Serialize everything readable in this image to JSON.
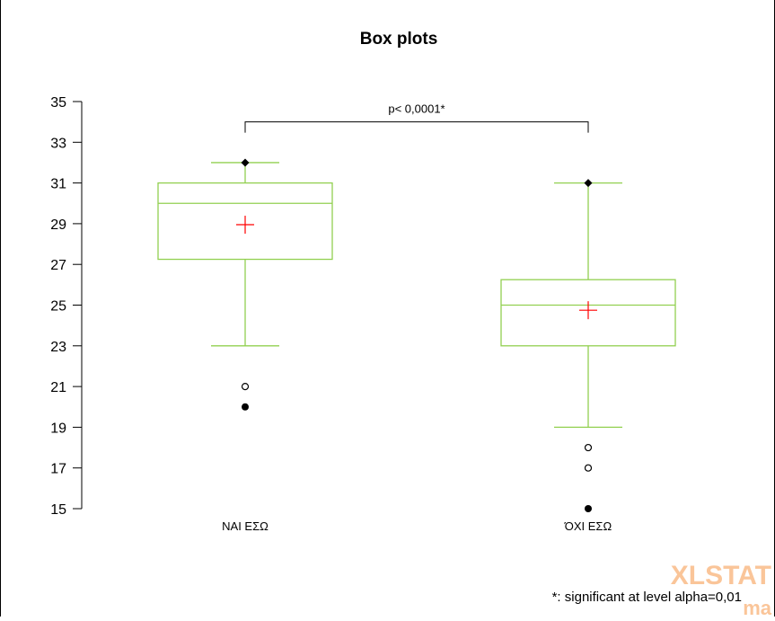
{
  "chart_data": {
    "type": "box",
    "title": "Box plots",
    "xlabel": "",
    "ylabel": "",
    "ylim": [
      15,
      35
    ],
    "yticks": [
      15,
      17,
      19,
      21,
      23,
      25,
      27,
      29,
      31,
      33,
      35
    ],
    "grid": false,
    "categories": [
      "ΝΑΙ ΕΣΩ",
      "ΌΧΙ ΕΣΩ"
    ],
    "boxes": [
      {
        "category": "ΝΑΙ ΕΣΩ",
        "whisker_low": 23,
        "q1": 27.25,
        "median": 30,
        "q3": 31,
        "whisker_high": 32,
        "mean": 28.95,
        "max_marker": 32,
        "outliers_open": [
          21
        ],
        "outliers_filled": [
          20
        ]
      },
      {
        "category": "ΌΧΙ ΕΣΩ",
        "whisker_low": 19,
        "q1": 23,
        "median": 25,
        "q3": 26.25,
        "whisker_high": 31,
        "mean": 24.75,
        "max_marker": 31,
        "outliers_open": [
          18,
          17
        ],
        "outliers_filled": [
          15
        ]
      }
    ],
    "significance": {
      "label": "p< 0,0001*",
      "between": [
        "ΝΑΙ ΕΣΩ",
        "ΌΧΙ ΕΣΩ"
      ],
      "level": 34
    },
    "footnote": "*: significant at level alpha=0,01",
    "colors": {
      "box": "#92d050",
      "mean": "#ff0000",
      "axis": "#000000",
      "logo": "#f79646"
    }
  },
  "watermark": {
    "brand": "XLSTAT",
    "sub": "ma"
  }
}
